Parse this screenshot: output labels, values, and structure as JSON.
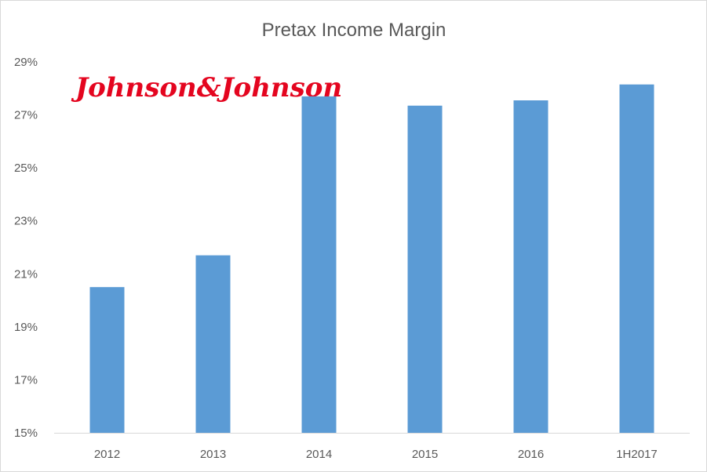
{
  "chart_data": {
    "type": "bar",
    "title": "Pretax Income Margin",
    "xlabel": "",
    "ylabel": "",
    "categories": [
      "2012",
      "2013",
      "2014",
      "2015",
      "2016",
      "1H2017"
    ],
    "values": [
      20.5,
      21.7,
      27.7,
      27.35,
      27.55,
      28.15
    ],
    "ylim": [
      15,
      29
    ],
    "yticks": [
      "15%",
      "17%",
      "19%",
      "21%",
      "23%",
      "25%",
      "27%",
      "29%"
    ],
    "ytick_values": [
      15,
      17,
      19,
      21,
      23,
      25,
      27,
      29
    ],
    "grid": false,
    "legend": "none",
    "bar_color": "#5b9bd5"
  },
  "logo": {
    "text": "Johnson&Johnson",
    "color": "#e4051f"
  }
}
